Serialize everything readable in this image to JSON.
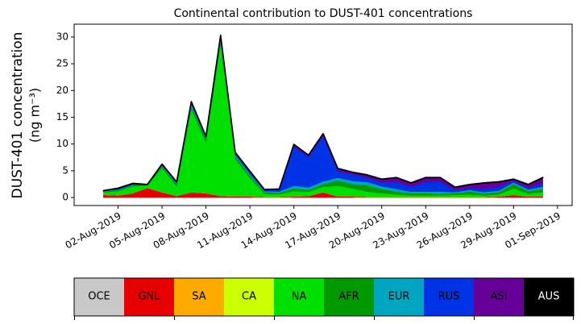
{
  "chart_data": {
    "type": "area",
    "stacked": true,
    "title": "Continental contribution to DUST-401 concentrations",
    "ylabel": [
      "DUST-401 concentration",
      "(ng m⁻³)"
    ],
    "x": [
      "2019-08-01",
      "2019-08-02",
      "2019-08-03",
      "2019-08-04",
      "2019-08-05",
      "2019-08-06",
      "2019-08-07",
      "2019-08-08",
      "2019-08-09",
      "2019-08-10",
      "2019-08-11",
      "2019-08-12",
      "2019-08-13",
      "2019-08-14",
      "2019-08-15",
      "2019-08-16",
      "2019-08-17",
      "2019-08-18",
      "2019-08-19",
      "2019-08-20",
      "2019-08-21",
      "2019-08-22",
      "2019-08-23",
      "2019-08-24",
      "2019-08-25",
      "2019-08-26",
      "2019-08-27",
      "2019-08-28",
      "2019-08-29",
      "2019-08-30",
      "2019-08-31"
    ],
    "xlim": [
      "2019-07-30",
      "2019-09-02"
    ],
    "xticks": [
      {
        "value": "2019-08-02",
        "label": "02-Aug-2019"
      },
      {
        "value": "2019-08-05",
        "label": "05-Aug-2019"
      },
      {
        "value": "2019-08-08",
        "label": "08-Aug-2019"
      },
      {
        "value": "2019-08-11",
        "label": "11-Aug-2019"
      },
      {
        "value": "2019-08-14",
        "label": "14-Aug-2019"
      },
      {
        "value": "2019-08-17",
        "label": "17-Aug-2019"
      },
      {
        "value": "2019-08-20",
        "label": "20-Aug-2019"
      },
      {
        "value": "2019-08-23",
        "label": "23-Aug-2019"
      },
      {
        "value": "2019-08-26",
        "label": "26-Aug-2019"
      },
      {
        "value": "2019-08-29",
        "label": "29-Aug-2019"
      },
      {
        "value": "2019-09-01",
        "label": "01-Sep-2019"
      }
    ],
    "ylim": [
      -1.5,
      32.4
    ],
    "yticks": [
      0,
      5,
      10,
      15,
      20,
      25,
      30
    ],
    "series": [
      {
        "name": "OCE",
        "color": "#c8c8c8",
        "values": [
          0,
          0,
          0,
          0,
          0,
          0,
          0,
          0,
          0,
          0,
          0,
          0,
          0,
          0,
          0,
          0,
          0,
          0,
          0,
          0,
          0,
          0,
          0,
          0,
          0,
          0,
          0,
          0,
          0,
          0,
          0
        ]
      },
      {
        "name": "GNL",
        "color": "#e60000",
        "values": [
          0.5,
          0.4,
          0.8,
          1.8,
          1.0,
          0.3,
          1.0,
          0.8,
          0.3,
          0.2,
          0.2,
          0.1,
          0.1,
          0.2,
          0.3,
          1.0,
          0.2,
          0.2,
          0.1,
          0.1,
          0.1,
          0.1,
          0.1,
          0.1,
          0.1,
          0.1,
          0.1,
          0.2,
          0.5,
          0.2,
          0.2
        ]
      },
      {
        "name": "SA",
        "color": "#ffaa00",
        "values": [
          0,
          0,
          0,
          0,
          0,
          0,
          0,
          0,
          0,
          0,
          0,
          0,
          0,
          0,
          0,
          0,
          0,
          0,
          0,
          0,
          0,
          0,
          0,
          0,
          0,
          0,
          0,
          0,
          0,
          0,
          0
        ]
      },
      {
        "name": "CA",
        "color": "#ccff00",
        "values": [
          0,
          0,
          0,
          0,
          0,
          0,
          0,
          0,
          0,
          0,
          0,
          0,
          0,
          0,
          0,
          0,
          0,
          0,
          0,
          0,
          0,
          0,
          0,
          0,
          0,
          0,
          0,
          0,
          0,
          0,
          0
        ]
      },
      {
        "name": "NA",
        "color": "#00e000",
        "values": [
          0.5,
          0.8,
          1.3,
          0.5,
          4.5,
          1.8,
          15.5,
          9.5,
          28.5,
          7.0,
          3.5,
          0.6,
          0.5,
          1.0,
          0.8,
          1.0,
          2.0,
          1.5,
          1.0,
          0.7,
          0.5,
          0.3,
          0.3,
          0.3,
          0.4,
          0.5,
          0.3,
          0.4,
          1.2,
          0.5,
          0.8
        ]
      },
      {
        "name": "AFR",
        "color": "#009900",
        "values": [
          0.1,
          0.2,
          0.2,
          0.1,
          0.3,
          0.3,
          0.5,
          0.6,
          0.5,
          0.5,
          0.4,
          0.3,
          0.3,
          0.5,
          0.3,
          0.5,
          1.0,
          0.8,
          1.2,
          0.8,
          0.5,
          0.4,
          0.4,
          0.3,
          0.3,
          0.5,
          0.3,
          0.4,
          0.8,
          0.5,
          0.6
        ]
      },
      {
        "name": "EUR",
        "color": "#00a5bf",
        "values": [
          0.1,
          0.1,
          0.1,
          0,
          0.2,
          0.2,
          0.4,
          0.2,
          0.4,
          0.3,
          0.3,
          0.2,
          0.2,
          0.5,
          0.5,
          0.5,
          0.5,
          0.6,
          0.6,
          0.5,
          0.5,
          0.3,
          0.3,
          0.4,
          0.2,
          0.3,
          0.3,
          0.3,
          0.3,
          0.3,
          0.4
        ]
      },
      {
        "name": "RUS",
        "color": "#0033e6",
        "values": [
          0.05,
          0.1,
          0.1,
          0,
          0.1,
          0.2,
          0.3,
          0.2,
          0.3,
          0.3,
          0.4,
          0.2,
          0.4,
          7.3,
          5.7,
          8.5,
          1.2,
          1.2,
          0.8,
          0.7,
          1.3,
          0.9,
          1.8,
          1.8,
          0.4,
          0.3,
          0.6,
          0.7,
          0.3,
          0.3,
          0.6
        ]
      },
      {
        "name": "ASI",
        "color": "#660099",
        "values": [
          0,
          0.1,
          0.1,
          0,
          0.1,
          0.1,
          0.2,
          0.1,
          0.3,
          0.1,
          0.1,
          0.05,
          0.05,
          0.4,
          0.3,
          0.4,
          0.5,
          0.4,
          0.5,
          0.6,
          0.8,
          0.7,
          0.8,
          0.8,
          0.5,
          0.7,
          1.1,
          0.9,
          0.3,
          0.6,
          1.1
        ]
      },
      {
        "name": "AUS",
        "color": "#000000",
        "values": [
          0.05,
          0.05,
          0.05,
          0.05,
          0.05,
          0.05,
          0.05,
          0.05,
          0.05,
          0.05,
          0.05,
          0.05,
          0.05,
          0.05,
          0.05,
          0.05,
          0.05,
          0.05,
          0.05,
          0.05,
          0.05,
          0.05,
          0.05,
          0.05,
          0.05,
          0.05,
          0.05,
          0.05,
          0.05,
          0.05,
          0.05
        ]
      }
    ]
  }
}
